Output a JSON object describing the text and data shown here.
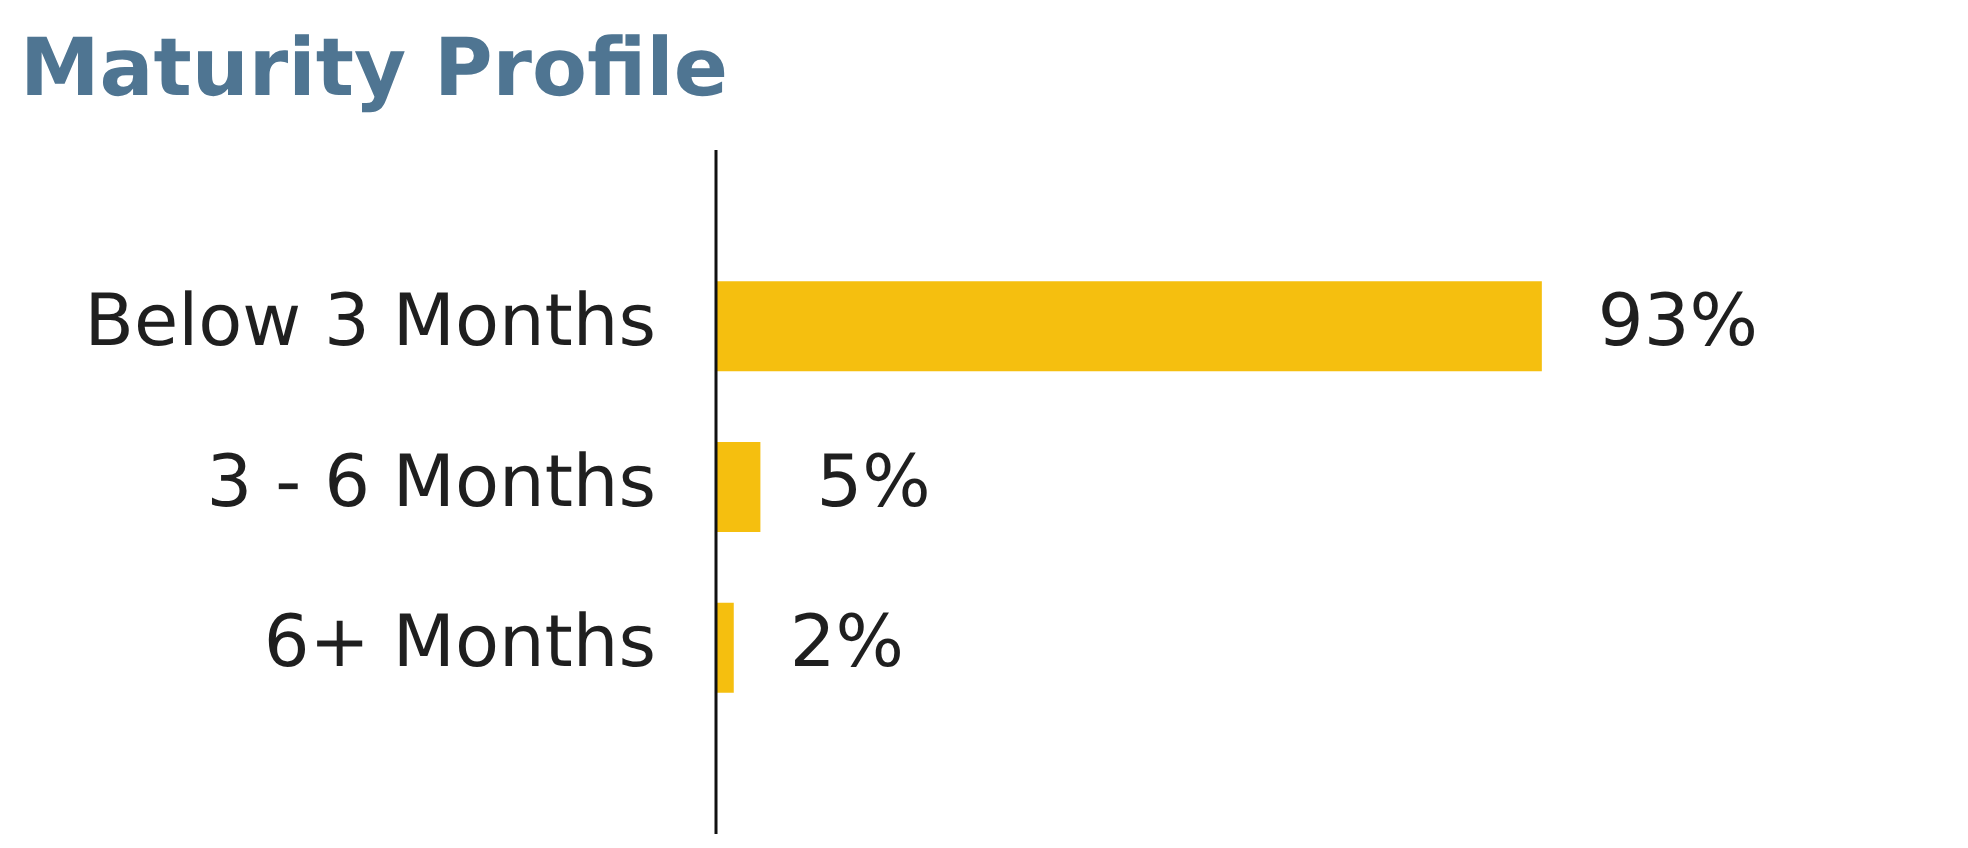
{
  "chart_data": {
    "type": "bar",
    "orientation": "horizontal",
    "title": "Maturity Profile",
    "categories": [
      "Below 3 Months",
      "3 - 6 Months",
      "6+ Months"
    ],
    "values": [
      93,
      5,
      2
    ],
    "value_labels": [
      "93%",
      "5%",
      "2%"
    ],
    "color": "#f5bf0f",
    "grid": false,
    "legend": false,
    "tick_labels": "y"
  }
}
